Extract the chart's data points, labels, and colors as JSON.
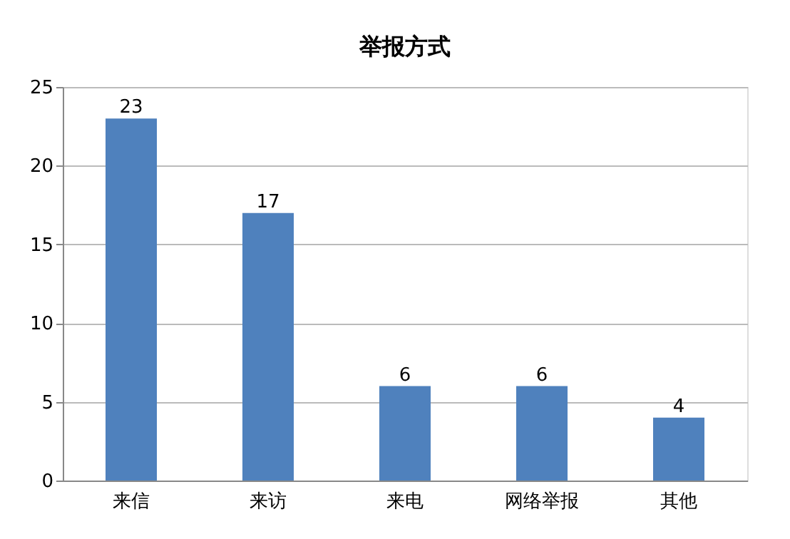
{
  "chart_data": {
    "type": "bar",
    "title": "举报方式",
    "categories": [
      "来信",
      "来访",
      "来电",
      "网络举报",
      "其他"
    ],
    "values": [
      23,
      17,
      6,
      6,
      4
    ],
    "color": "#4f81bd",
    "ylim": [
      0,
      25
    ],
    "yticks": [
      0,
      5,
      10,
      15,
      20,
      25
    ],
    "grid": "y",
    "data_labels": true
  }
}
